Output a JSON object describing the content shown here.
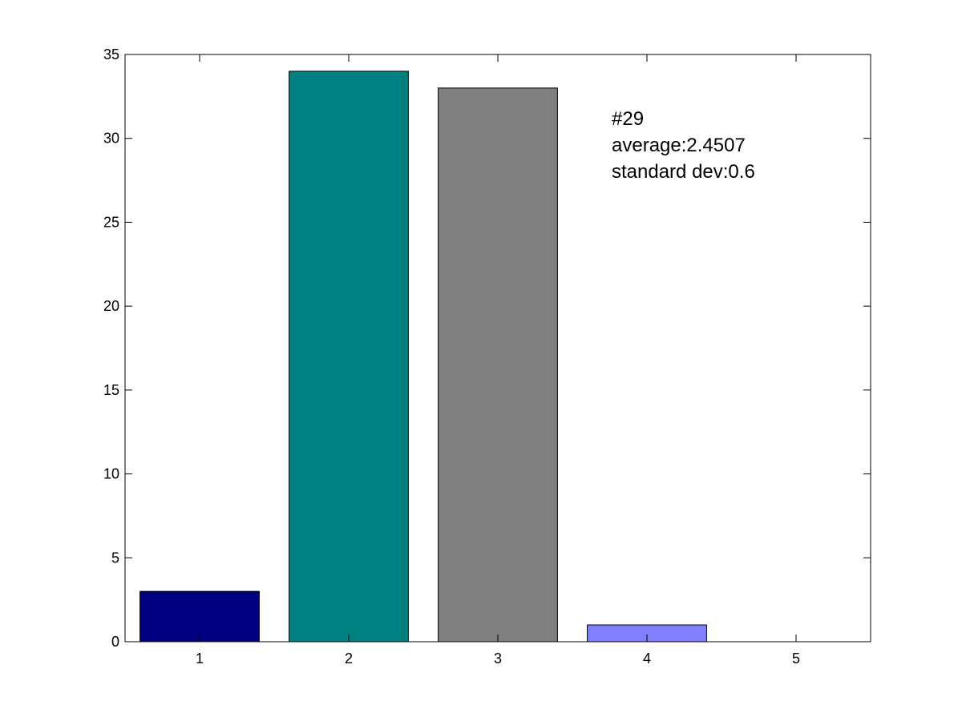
{
  "chart_data": {
    "type": "bar",
    "categories": [
      "1",
      "2",
      "3",
      "4",
      "5"
    ],
    "values": [
      3,
      34,
      33,
      1,
      0
    ],
    "bar_colors": [
      "#000080",
      "#008080",
      "#808080",
      "#8080ff",
      "#ffffff"
    ],
    "xlim": [
      0.5,
      5.5
    ],
    "ylim": [
      0,
      35
    ],
    "y_ticks": [
      0,
      5,
      10,
      15,
      20,
      25,
      30,
      35
    ],
    "x_ticks": [
      1,
      2,
      3,
      4,
      5
    ],
    "grid": false,
    "annotation": {
      "line1": "#29",
      "line2": "average:2.4507",
      "line3": "standard dev:0.6"
    }
  }
}
